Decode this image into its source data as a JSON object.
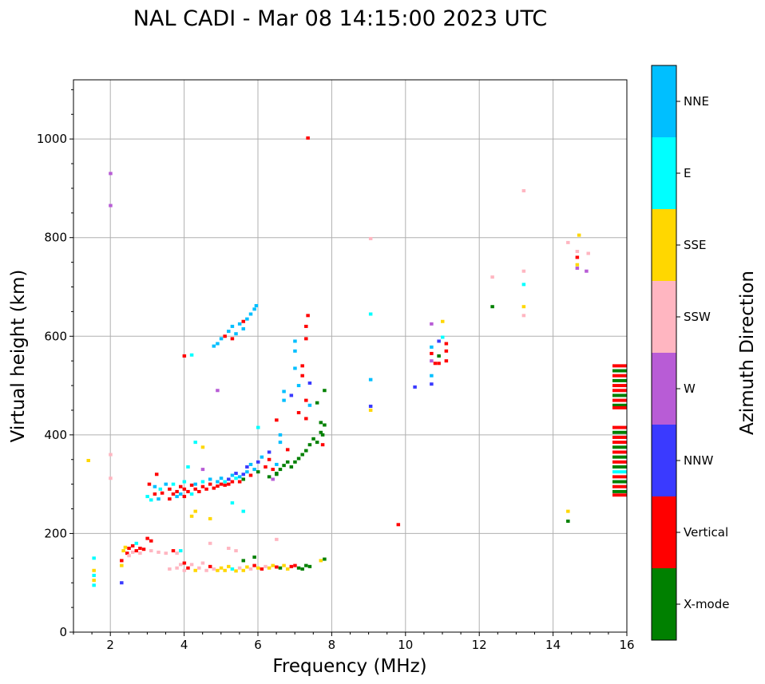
{
  "chart_data": {
    "type": "scatter",
    "title": "NAL CADI - Mar 08 14:15:00 2023 UTC",
    "xlabel": "Frequency (MHz)",
    "ylabel": "Virtual height (km)",
    "xlim": [
      1,
      16
    ],
    "ylim": [
      0,
      1120
    ],
    "xticks": [
      2,
      4,
      6,
      8,
      10,
      12,
      14,
      16
    ],
    "yticks": [
      0,
      200,
      400,
      600,
      800,
      1000
    ],
    "grid": true,
    "colorbar": {
      "label": "Azimuth Direction",
      "categories": [
        "X-mode",
        "Vertical",
        "NNW",
        "W",
        "SSW",
        "SSE",
        "E",
        "NNE"
      ],
      "colors": [
        "#008000",
        "#ff0000",
        "#3a3aff",
        "#b85cd6",
        "#ffb6c1",
        "#ffd700",
        "#00ffff",
        "#00bfff"
      ]
    },
    "points_format": "[frequency_MHz, virtual_height_km, category_index]",
    "points": [
      [
        1.4,
        348,
        5
      ],
      [
        1.55,
        95,
        6
      ],
      [
        1.55,
        105,
        5
      ],
      [
        1.55,
        115,
        6
      ],
      [
        1.55,
        125,
        5
      ],
      [
        1.55,
        150,
        6
      ],
      [
        2.0,
        930,
        3
      ],
      [
        2.0,
        865,
        3
      ],
      [
        2.0,
        360,
        4
      ],
      [
        2.0,
        312,
        4
      ],
      [
        2.3,
        100,
        2
      ],
      [
        2.3,
        135,
        5
      ],
      [
        2.3,
        145,
        1
      ],
      [
        2.35,
        165,
        5
      ],
      [
        2.4,
        172,
        5
      ],
      [
        2.45,
        160,
        1
      ],
      [
        2.5,
        155,
        4
      ],
      [
        2.5,
        170,
        1
      ],
      [
        2.6,
        175,
        1
      ],
      [
        2.6,
        162,
        4
      ],
      [
        2.7,
        180,
        6
      ],
      [
        2.7,
        165,
        1
      ],
      [
        2.8,
        170,
        1
      ],
      [
        2.8,
        160,
        4
      ],
      [
        2.9,
        168,
        1
      ],
      [
        3.0,
        190,
        1
      ],
      [
        3.1,
        185,
        1
      ],
      [
        3.1,
        165,
        4
      ],
      [
        3.3,
        162,
        4
      ],
      [
        3.5,
        160,
        4
      ],
      [
        3.7,
        165,
        1
      ],
      [
        3.8,
        160,
        4
      ],
      [
        3.9,
        165,
        6
      ],
      [
        3.6,
        128,
        4
      ],
      [
        3.8,
        130,
        4
      ],
      [
        3.9,
        137,
        4
      ],
      [
        4.0,
        140,
        1
      ],
      [
        4.0,
        125,
        4
      ],
      [
        4.1,
        130,
        1
      ],
      [
        4.2,
        137,
        4
      ],
      [
        4.3,
        125,
        5
      ],
      [
        4.4,
        130,
        4
      ],
      [
        4.5,
        140,
        4
      ],
      [
        4.6,
        125,
        4
      ],
      [
        4.7,
        133,
        1
      ],
      [
        4.8,
        128,
        4
      ],
      [
        4.9,
        125,
        5
      ],
      [
        5.0,
        130,
        5
      ],
      [
        5.1,
        125,
        5
      ],
      [
        5.2,
        133,
        5
      ],
      [
        5.3,
        128,
        6
      ],
      [
        5.4,
        124,
        5
      ],
      [
        5.5,
        130,
        4
      ],
      [
        5.6,
        125,
        5
      ],
      [
        5.7,
        132,
        5
      ],
      [
        5.8,
        128,
        4
      ],
      [
        5.9,
        135,
        1
      ],
      [
        6.0,
        130,
        5
      ],
      [
        6.1,
        128,
        1
      ],
      [
        6.2,
        133,
        4
      ],
      [
        6.3,
        130,
        5
      ],
      [
        6.4,
        135,
        5
      ],
      [
        6.5,
        132,
        1
      ],
      [
        6.6,
        130,
        0
      ],
      [
        6.7,
        135,
        5
      ],
      [
        6.8,
        128,
        5
      ],
      [
        6.9,
        133,
        1
      ],
      [
        7.0,
        135,
        1
      ],
      [
        7.1,
        130,
        0
      ],
      [
        7.2,
        128,
        0
      ],
      [
        7.3,
        135,
        0
      ],
      [
        7.4,
        133,
        0
      ],
      [
        7.7,
        145,
        5
      ],
      [
        7.8,
        148,
        0
      ],
      [
        4.7,
        180,
        4
      ],
      [
        5.2,
        170,
        4
      ],
      [
        5.4,
        165,
        4
      ],
      [
        6.5,
        188,
        4
      ],
      [
        5.6,
        145,
        0
      ],
      [
        5.9,
        152,
        0
      ],
      [
        3.0,
        275,
        6
      ],
      [
        3.05,
        300,
        1
      ],
      [
        3.1,
        268,
        6
      ],
      [
        3.2,
        280,
        1
      ],
      [
        3.2,
        295,
        7
      ],
      [
        3.25,
        320,
        1
      ],
      [
        3.3,
        270,
        7
      ],
      [
        3.35,
        290,
        6
      ],
      [
        3.4,
        282,
        1
      ],
      [
        3.5,
        300,
        7
      ],
      [
        3.6,
        270,
        1
      ],
      [
        3.6,
        290,
        1
      ],
      [
        3.7,
        280,
        1
      ],
      [
        3.7,
        300,
        6
      ],
      [
        3.8,
        285,
        1
      ],
      [
        3.8,
        275,
        7
      ],
      [
        3.9,
        295,
        1
      ],
      [
        3.9,
        280,
        7
      ],
      [
        4.0,
        275,
        1
      ],
      [
        4.0,
        290,
        1
      ],
      [
        4.0,
        305,
        6
      ],
      [
        4.1,
        285,
        1
      ],
      [
        4.2,
        298,
        1
      ],
      [
        4.2,
        280,
        6
      ],
      [
        4.3,
        290,
        1
      ],
      [
        4.3,
        300,
        7
      ],
      [
        4.4,
        285,
        1
      ],
      [
        4.5,
        295,
        1
      ],
      [
        4.5,
        305,
        6
      ],
      [
        4.6,
        290,
        1
      ],
      [
        4.7,
        300,
        1
      ],
      [
        4.7,
        310,
        7
      ],
      [
        4.8,
        292,
        1
      ],
      [
        4.9,
        305,
        7
      ],
      [
        4.9,
        296,
        1
      ],
      [
        5.0,
        300,
        1
      ],
      [
        5.0,
        312,
        7
      ],
      [
        5.1,
        305,
        6
      ],
      [
        5.1,
        298,
        1
      ],
      [
        5.2,
        310,
        2
      ],
      [
        5.2,
        300,
        1
      ],
      [
        5.3,
        318,
        7
      ],
      [
        5.3,
        305,
        1
      ],
      [
        5.4,
        312,
        6
      ],
      [
        5.4,
        322,
        2
      ],
      [
        5.5,
        315,
        7
      ],
      [
        5.5,
        305,
        1
      ],
      [
        5.6,
        320,
        2
      ],
      [
        5.6,
        310,
        0
      ],
      [
        5.7,
        325,
        7
      ],
      [
        5.7,
        335,
        2
      ],
      [
        5.8,
        318,
        1
      ],
      [
        5.8,
        340,
        7
      ],
      [
        5.9,
        330,
        7
      ],
      [
        6.0,
        345,
        2
      ],
      [
        6.0,
        325,
        0
      ],
      [
        6.1,
        355,
        7
      ],
      [
        6.2,
        335,
        1
      ],
      [
        6.3,
        350,
        1
      ],
      [
        6.3,
        365,
        2
      ],
      [
        6.4,
        330,
        1
      ],
      [
        6.4,
        310,
        3
      ],
      [
        6.5,
        340,
        7
      ],
      [
        6.5,
        320,
        0
      ],
      [
        4.3,
        245,
        5
      ],
      [
        4.2,
        235,
        5
      ],
      [
        4.7,
        230,
        5
      ],
      [
        5.6,
        245,
        6
      ],
      [
        5.3,
        262,
        6
      ],
      [
        4.3,
        385,
        6
      ],
      [
        4.5,
        375,
        5
      ],
      [
        4.1,
        335,
        6
      ],
      [
        4.9,
        490,
        3
      ],
      [
        4.5,
        330,
        3
      ],
      [
        6.3,
        315,
        0
      ],
      [
        6.5,
        322,
        0
      ],
      [
        6.6,
        330,
        0
      ],
      [
        6.7,
        338,
        0
      ],
      [
        6.8,
        345,
        0
      ],
      [
        6.9,
        335,
        0
      ],
      [
        7.0,
        345,
        0
      ],
      [
        7.1,
        352,
        0
      ],
      [
        7.2,
        360,
        0
      ],
      [
        7.3,
        368,
        0
      ],
      [
        7.4,
        380,
        0
      ],
      [
        7.5,
        392,
        0
      ],
      [
        7.6,
        385,
        0
      ],
      [
        7.7,
        405,
        0
      ],
      [
        7.8,
        420,
        0
      ],
      [
        7.75,
        400,
        0
      ],
      [
        7.75,
        380,
        1
      ],
      [
        7.7,
        425,
        0
      ],
      [
        7.8,
        490,
        0
      ],
      [
        7.6,
        465,
        0
      ],
      [
        6.5,
        430,
        1
      ],
      [
        6.6,
        400,
        7
      ],
      [
        6.6,
        385,
        7
      ],
      [
        6.7,
        488,
        7
      ],
      [
        6.7,
        470,
        7
      ],
      [
        6.8,
        370,
        1
      ],
      [
        6.9,
        480,
        2
      ],
      [
        7.0,
        590,
        7
      ],
      [
        7.0,
        570,
        7
      ],
      [
        7.0,
        535,
        7
      ],
      [
        7.1,
        445,
        1
      ],
      [
        7.1,
        500,
        7
      ],
      [
        7.2,
        540,
        1
      ],
      [
        7.2,
        520,
        1
      ],
      [
        7.3,
        620,
        1
      ],
      [
        7.3,
        595,
        1
      ],
      [
        7.3,
        470,
        1
      ],
      [
        7.3,
        433,
        1
      ],
      [
        7.4,
        505,
        2
      ],
      [
        7.4,
        460,
        7
      ],
      [
        7.35,
        1002,
        1
      ],
      [
        7.35,
        642,
        1
      ],
      [
        6.0,
        415,
        6
      ],
      [
        4.8,
        580,
        7
      ],
      [
        4.9,
        585,
        7
      ],
      [
        5.0,
        595,
        7
      ],
      [
        5.1,
        600,
        1
      ],
      [
        5.2,
        610,
        7
      ],
      [
        5.3,
        595,
        1
      ],
      [
        5.3,
        620,
        7
      ],
      [
        5.4,
        605,
        7
      ],
      [
        5.5,
        625,
        7
      ],
      [
        5.6,
        615,
        7
      ],
      [
        5.7,
        635,
        7
      ],
      [
        5.8,
        645,
        7
      ],
      [
        5.9,
        655,
        7
      ],
      [
        5.95,
        662,
        7
      ],
      [
        5.6,
        630,
        1
      ],
      [
        4.0,
        560,
        1
      ],
      [
        4.2,
        562,
        6
      ],
      [
        9.05,
        645,
        6
      ],
      [
        9.05,
        512,
        7
      ],
      [
        9.05,
        458,
        2
      ],
      [
        9.05,
        450,
        5
      ],
      [
        9.05,
        798,
        4
      ],
      [
        9.8,
        218,
        1
      ],
      [
        10.25,
        497,
        2
      ],
      [
        10.7,
        625,
        3
      ],
      [
        10.7,
        578,
        7
      ],
      [
        10.7,
        565,
        1
      ],
      [
        10.7,
        550,
        3
      ],
      [
        10.7,
        520,
        7
      ],
      [
        10.7,
        503,
        2
      ],
      [
        10.9,
        590,
        2
      ],
      [
        10.9,
        560,
        0
      ],
      [
        10.9,
        545,
        1
      ],
      [
        11.0,
        630,
        5
      ],
      [
        11.0,
        598,
        6
      ],
      [
        11.1,
        585,
        1
      ],
      [
        11.1,
        570,
        1
      ],
      [
        11.1,
        550,
        1
      ],
      [
        10.8,
        545,
        1
      ],
      [
        12.35,
        720,
        4
      ],
      [
        12.35,
        660,
        0
      ],
      [
        13.2,
        895,
        4
      ],
      [
        13.2,
        732,
        4
      ],
      [
        13.2,
        705,
        6
      ],
      [
        13.2,
        660,
        5
      ],
      [
        13.2,
        642,
        4
      ],
      [
        14.4,
        245,
        5
      ],
      [
        14.4,
        225,
        0
      ],
      [
        14.4,
        790,
        4
      ],
      [
        14.7,
        805,
        5
      ],
      [
        14.65,
        772,
        4
      ],
      [
        14.65,
        760,
        1
      ],
      [
        14.65,
        745,
        5
      ],
      [
        14.65,
        738,
        3
      ],
      [
        14.9,
        732,
        3
      ],
      [
        14.95,
        768,
        4
      ],
      [
        15.8,
        540,
        1
      ],
      [
        15.8,
        530,
        0
      ],
      [
        15.8,
        520,
        1
      ],
      [
        15.8,
        510,
        0
      ],
      [
        15.8,
        500,
        1
      ],
      [
        15.8,
        490,
        1
      ],
      [
        15.8,
        480,
        0
      ],
      [
        15.8,
        470,
        1
      ],
      [
        15.8,
        460,
        0
      ],
      [
        15.8,
        455,
        1
      ],
      [
        15.8,
        415,
        1
      ],
      [
        15.8,
        405,
        0
      ],
      [
        15.8,
        395,
        1
      ],
      [
        15.8,
        385,
        1
      ],
      [
        15.8,
        375,
        0
      ],
      [
        15.8,
        365,
        1
      ],
      [
        15.8,
        355,
        0
      ],
      [
        15.8,
        345,
        1
      ],
      [
        15.8,
        335,
        0
      ],
      [
        15.8,
        325,
        6
      ],
      [
        15.8,
        315,
        1
      ],
      [
        15.8,
        305,
        0
      ],
      [
        15.8,
        295,
        1
      ],
      [
        15.8,
        285,
        0
      ],
      [
        15.8,
        278,
        1
      ]
    ]
  }
}
